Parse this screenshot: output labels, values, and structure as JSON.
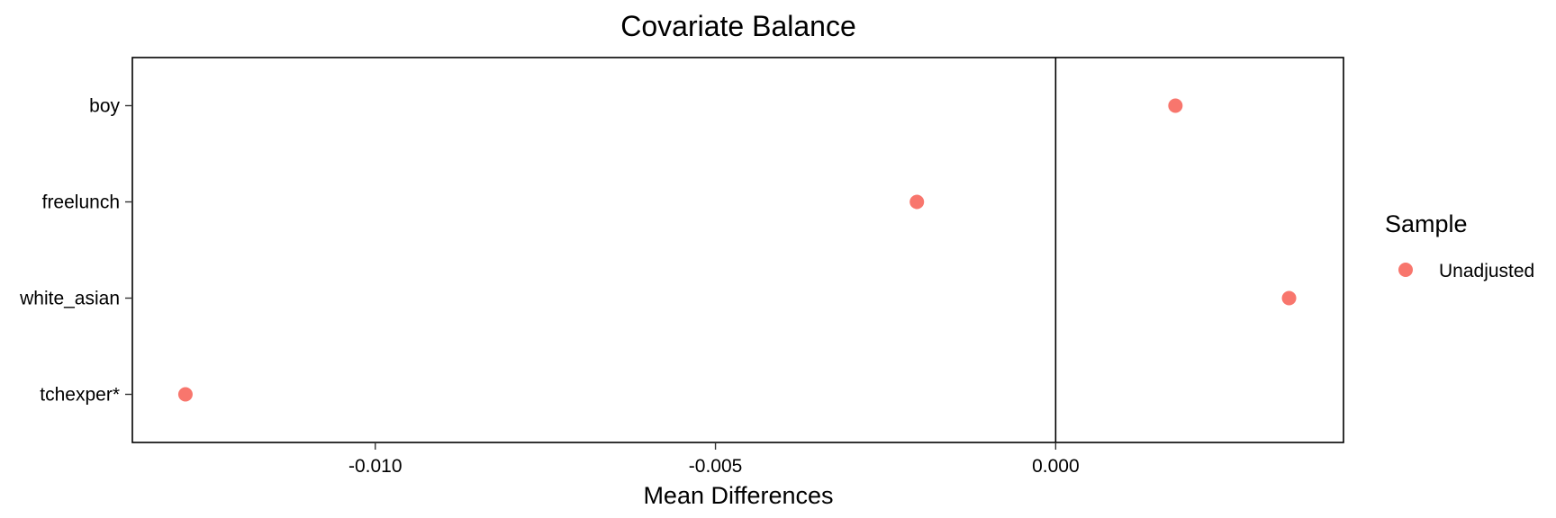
{
  "chart_data": {
    "type": "scatter",
    "title": "Covariate Balance",
    "xlabel": "Mean Differences",
    "ylabel": "",
    "xlim": [
      -0.01357,
      0.00423
    ],
    "xticks": [
      -0.01,
      -0.005,
      0.0
    ],
    "xtick_labels": [
      "-0.010",
      "-0.005",
      "0.000"
    ],
    "reference_line_x": 0,
    "grid": false,
    "categories": [
      "boy",
      "freelunch",
      "white_asian",
      "tchexper*"
    ],
    "series": [
      {
        "name": "Unadjusted",
        "color": "#F8766D",
        "points": [
          {
            "label": "boy",
            "x": 0.00176
          },
          {
            "label": "freelunch",
            "x": -0.00204
          },
          {
            "label": "white_asian",
            "x": 0.00343
          },
          {
            "label": "tchexper*",
            "x": -0.01279
          }
        ]
      }
    ],
    "legend": {
      "title": "Sample",
      "placement": "right",
      "entries": [
        "Unadjusted"
      ]
    }
  }
}
